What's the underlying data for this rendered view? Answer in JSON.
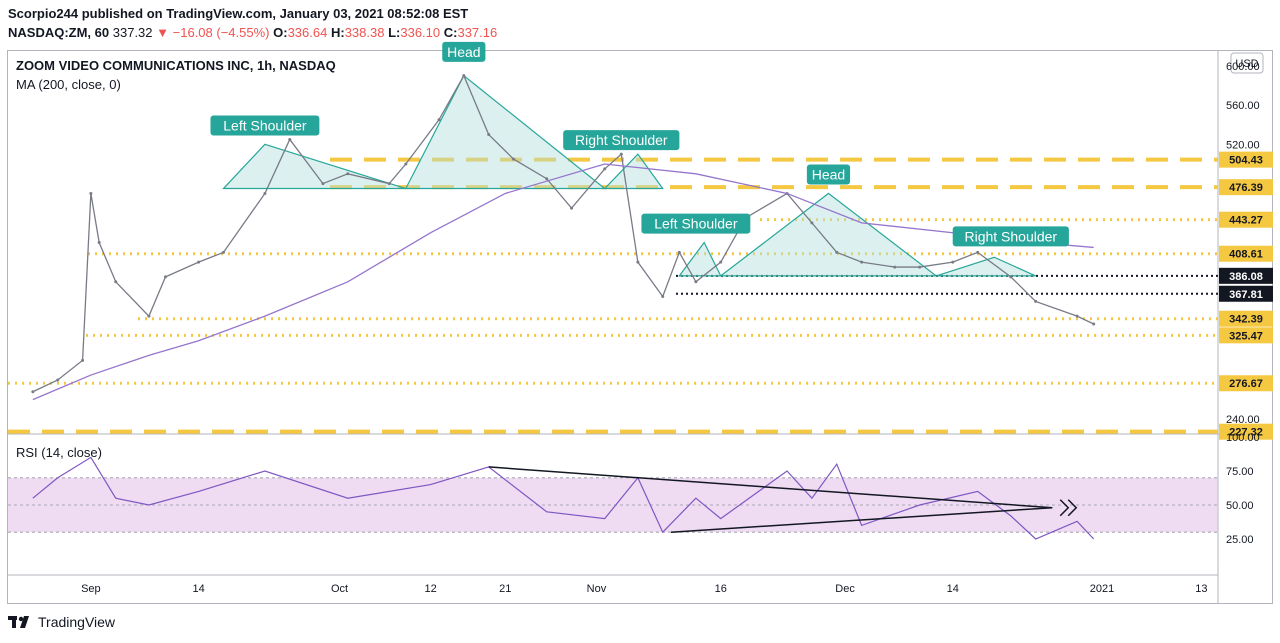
{
  "header": {
    "line1": "Scorpio244 published on TradingView.com, January 03, 2021 08:52:08 EST",
    "symbol": "NASDAQ:ZM, 60",
    "last": "337.32",
    "change_arrow": "▼",
    "change": "−16.08 (−4.55%)",
    "o_label": "O:",
    "o": "336.64",
    "h_label": "H:",
    "h": "338.38",
    "l_label": "L:",
    "l": "336.10",
    "c_label": "C:",
    "c": "337.16"
  },
  "chart": {
    "title": "ZOOM VIDEO COMMUNICATIONS INC, 1h, NASDAQ",
    "ma_label": "MA (200, close, 0)",
    "rsi_label": "RSI (14, close)",
    "currency": "USD",
    "colors": {
      "candle": "#787b86",
      "ma": "#9575cd",
      "rsi": "#7e57c2",
      "level": "#f5c842",
      "pattern": "#26a69a",
      "pattern_fill": "#b2dfdb",
      "rsi_band": "#e1bee7"
    }
  },
  "chart_data": {
    "type": "line",
    "price_axis": {
      "ticks": [
        "600.00",
        "560.00",
        "520.00",
        "240.00"
      ],
      "range": [
        227,
        610
      ]
    },
    "level_labels": [
      "504.43",
      "476.39",
      "443.27",
      "408.61",
      "386.08",
      "367.81",
      "342.39",
      "325.47",
      "276.67",
      "227.32"
    ],
    "levels": [
      504.43,
      476.39,
      443.27,
      408.61,
      386.08,
      367.81,
      342.39,
      325.47,
      276.67,
      227.32
    ],
    "rsi_axis": {
      "ticks": [
        "100.00",
        "75.00",
        "50.00",
        "25.00"
      ],
      "range": [
        0,
        100
      ],
      "band": [
        30,
        70
      ]
    },
    "x_labels": [
      "Sep",
      "14",
      "Oct",
      "12",
      "21",
      "Nov",
      "16",
      "Dec",
      "14",
      "2021",
      "13"
    ],
    "annotations": [
      "Left Shoulder",
      "Head",
      "Right Shoulder",
      "Left Shoulder",
      "Head",
      "Right Shoulder"
    ],
    "price_series": {
      "name": "",
      "x": [
        "Aug 25",
        "Aug 28",
        "Aug 31",
        "Sep 1",
        "Sep 2",
        "Sep 4",
        "Sep 8",
        "Sep 10",
        "Sep 14",
        "Sep 17",
        "Sep 22",
        "Sep 25",
        "Sep 29",
        "Oct 2",
        "Oct 7",
        "Oct 9",
        "Oct 13",
        "Oct 16",
        "Oct 19",
        "Oct 22",
        "Oct 26",
        "Oct 29",
        "Nov 2",
        "Nov 4",
        "Nov 6",
        "Nov 9",
        "Nov 11",
        "Nov 13",
        "Nov 16",
        "Nov 19",
        "Nov 24",
        "Nov 27",
        "Nov 30",
        "Dec 3",
        "Dec 7",
        "Dec 10",
        "Dec 14",
        "Dec 17",
        "Dec 21",
        "Dec 24",
        "Dec 29",
        "Dec 31"
      ],
      "values": [
        268,
        280,
        300,
        470,
        420,
        380,
        345,
        385,
        400,
        410,
        470,
        525,
        480,
        490,
        480,
        500,
        545,
        590,
        530,
        505,
        485,
        455,
        495,
        510,
        400,
        365,
        410,
        380,
        400,
        445,
        470,
        440,
        410,
        400,
        395,
        395,
        400,
        410,
        385,
        360,
        345,
        337
      ]
    },
    "ma_series": {
      "x": [
        "Aug 25",
        "Sep 1",
        "Sep 8",
        "Sep 14",
        "Sep 22",
        "Oct 2",
        "Oct 12",
        "Oct 21",
        "Nov 2",
        "Nov 13",
        "Nov 24",
        "Dec 3",
        "Dec 14",
        "Dec 24",
        "Dec 31"
      ],
      "values": [
        260,
        285,
        305,
        320,
        345,
        380,
        430,
        470,
        500,
        490,
        470,
        440,
        430,
        420,
        415
      ]
    },
    "rsi_series": {
      "x": [
        "Aug 25",
        "Aug 28",
        "Sep 1",
        "Sep 4",
        "Sep 8",
        "Sep 14",
        "Sep 22",
        "Oct 2",
        "Oct 12",
        "Oct 19",
        "Oct 26",
        "Nov 2",
        "Nov 6",
        "Nov 9",
        "Nov 13",
        "Nov 16",
        "Nov 24",
        "Nov 27",
        "Nov 30",
        "Dec 3",
        "Dec 10",
        "Dec 17",
        "Dec 21",
        "Dec 24",
        "Dec 29",
        "Dec 31"
      ],
      "values": [
        55,
        70,
        85,
        55,
        50,
        60,
        75,
        55,
        65,
        78,
        45,
        40,
        70,
        30,
        55,
        40,
        75,
        55,
        80,
        35,
        50,
        60,
        42,
        25,
        38,
        25
      ]
    }
  }
}
